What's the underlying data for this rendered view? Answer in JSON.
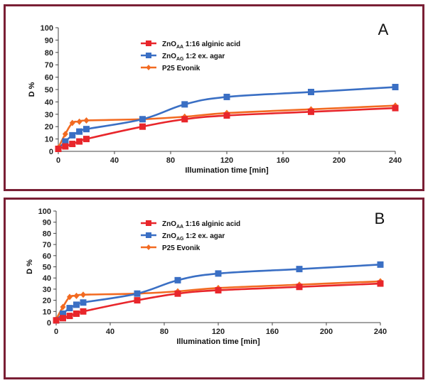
{
  "chart_data": [
    {
      "type": "line",
      "panel_label": "A",
      "xlabel": "Illumination time [min]",
      "ylabel": "D %",
      "xlim": [
        0,
        240
      ],
      "ylim": [
        0,
        100
      ],
      "xticks": [
        0,
        40,
        80,
        120,
        160,
        200,
        240
      ],
      "yticks": [
        0,
        10,
        20,
        30,
        40,
        50,
        60,
        70,
        80,
        90,
        100
      ],
      "legend_position": "top-center",
      "series": [
        {
          "name": "ZnO",
          "subscript": "AA",
          "suffix": " 1:16 alginic acid",
          "color": "#e8262b",
          "marker": "square",
          "x": [
            0,
            5,
            10,
            15,
            20,
            60,
            90,
            120,
            180,
            240
          ],
          "y": [
            2,
            4,
            6,
            8,
            10,
            20,
            26,
            29,
            32,
            35
          ]
        },
        {
          "name": "ZnO",
          "subscript": "AG",
          "suffix": " 1:2 ex. agar",
          "color": "#3a6fc4",
          "marker": "square",
          "x": [
            0,
            5,
            10,
            15,
            20,
            60,
            90,
            120,
            180,
            240
          ],
          "y": [
            2,
            8,
            13,
            16,
            18,
            26,
            38,
            44,
            48,
            52
          ]
        },
        {
          "name": "P25 Evonik",
          "subscript": "",
          "suffix": "",
          "color": "#f26a21",
          "marker": "diamond",
          "x": [
            0,
            5,
            10,
            15,
            20,
            60,
            90,
            120,
            180,
            240
          ],
          "y": [
            3,
            14,
            23,
            24,
            25,
            26,
            28,
            31,
            34,
            37
          ]
        }
      ]
    },
    {
      "type": "line",
      "panel_label": "B",
      "xlabel": "Illumination time [min]",
      "ylabel": "D %",
      "xlim": [
        0,
        240
      ],
      "ylim": [
        0,
        100
      ],
      "xticks": [
        0,
        40,
        80,
        120,
        160,
        200,
        240
      ],
      "yticks": [
        0,
        10,
        20,
        30,
        40,
        50,
        60,
        70,
        80,
        90,
        100
      ],
      "legend_position": "top-center",
      "series": [
        {
          "name": "ZnO",
          "subscript": "AA",
          "suffix": " 1:16 alginic acid",
          "color": "#e8262b",
          "marker": "square",
          "x": [
            0,
            5,
            10,
            15,
            20,
            60,
            90,
            120,
            180,
            240
          ],
          "y": [
            2,
            4,
            6,
            8,
            10,
            20,
            26,
            29,
            32,
            35
          ]
        },
        {
          "name": "ZnO",
          "subscript": "AG",
          "suffix": " 1:2 ex. agar",
          "color": "#3a6fc4",
          "marker": "square",
          "x": [
            0,
            5,
            10,
            15,
            20,
            60,
            90,
            120,
            180,
            240
          ],
          "y": [
            2,
            8,
            13,
            16,
            18,
            26,
            38,
            44,
            48,
            52
          ]
        },
        {
          "name": "P25 Evonik",
          "subscript": "",
          "suffix": "",
          "color": "#f26a21",
          "marker": "diamond",
          "x": [
            0,
            5,
            10,
            15,
            20,
            60,
            90,
            120,
            180,
            240
          ],
          "y": [
            3,
            14,
            23,
            24,
            25,
            26,
            28,
            31,
            34,
            37
          ]
        }
      ]
    }
  ]
}
